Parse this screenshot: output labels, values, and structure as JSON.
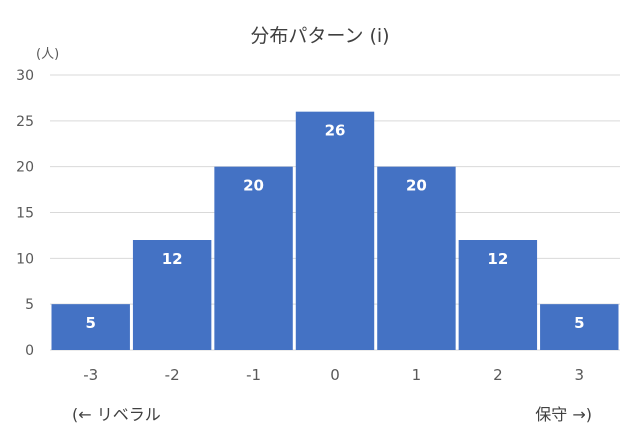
{
  "chart_data": {
    "type": "bar",
    "title": "分布パターン (i)",
    "ylabel": "(人)",
    "categories": [
      "-3",
      "-2",
      "-1",
      "0",
      "1",
      "2",
      "3"
    ],
    "values": [
      5,
      12,
      20,
      26,
      20,
      12,
      5
    ],
    "ylim": [
      0,
      30
    ],
    "yticks": [
      0,
      5,
      10,
      15,
      20,
      25,
      30
    ],
    "grid": true,
    "legend": "none",
    "bar_color": "#4472c4",
    "data_labels": true,
    "annotations": {
      "left": "(← リベラル",
      "right": "保守 →)"
    }
  }
}
